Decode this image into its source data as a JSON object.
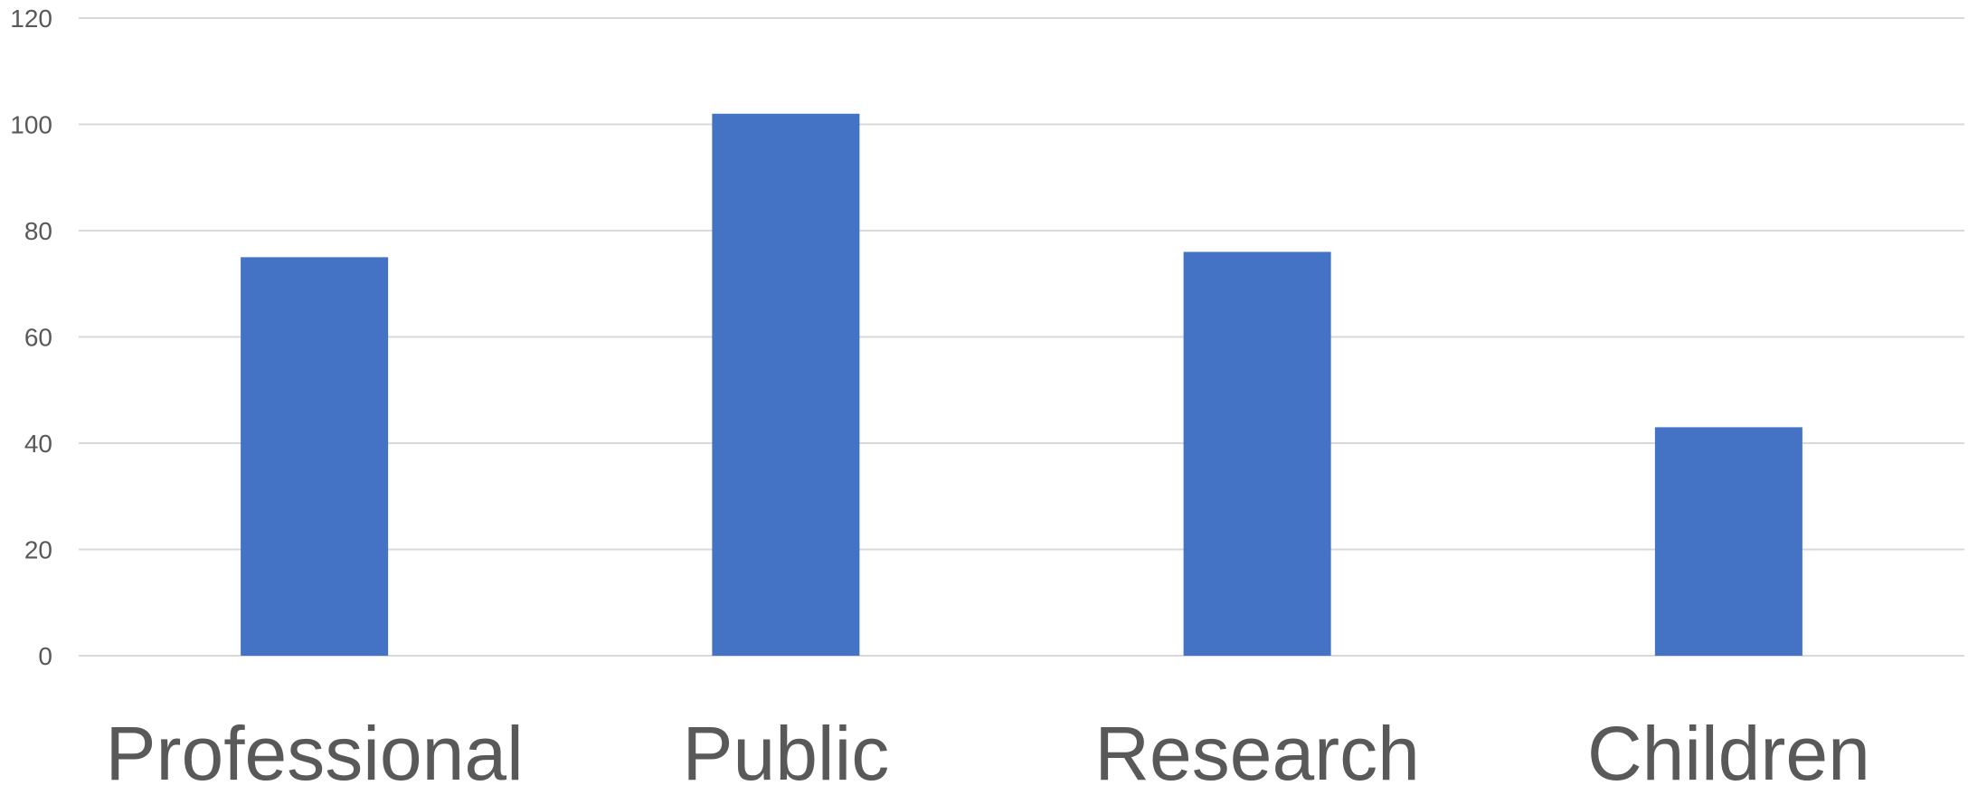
{
  "chart_data": {
    "type": "bar",
    "categories": [
      "Professional",
      "Public",
      "Research",
      "Children"
    ],
    "values": [
      75,
      102,
      76,
      43
    ],
    "ylim": [
      0,
      120
    ],
    "yticks": [
      0,
      20,
      40,
      60,
      80,
      100,
      120
    ],
    "title": "",
    "xlabel": "",
    "ylabel": "",
    "grid": true,
    "legend": "none",
    "bar_color": "#4472c4",
    "gridline_color": "#d9d9d9",
    "text_color": "#595959"
  }
}
